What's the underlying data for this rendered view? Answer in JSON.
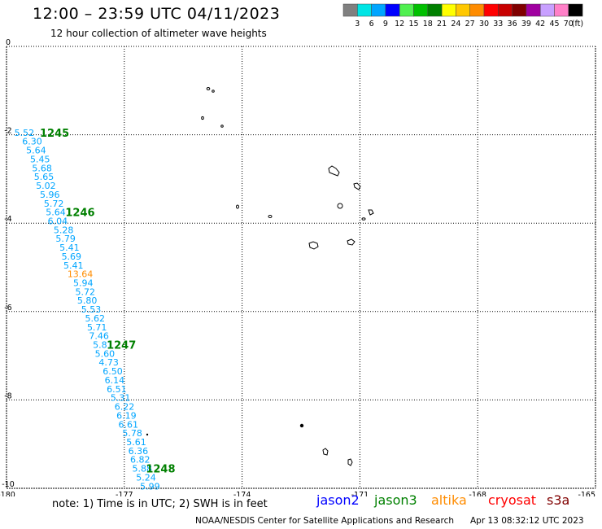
{
  "header": {
    "title": "12:00 – 23:59 UTC 04/11/2023",
    "subtitle": "12 hour collection of altimeter wave heights"
  },
  "colorbar": {
    "unit": "(ft)",
    "labels": [
      "3",
      "6",
      "9",
      "12",
      "15",
      "18",
      "21",
      "24",
      "27",
      "30",
      "33",
      "36",
      "39",
      "42",
      "45",
      "70"
    ],
    "colors": [
      "#808080",
      "#00e5e5",
      "#00a5ff",
      "#0000ff",
      "#50f050",
      "#00c000",
      "#008000",
      "#ffff00",
      "#ffc800",
      "#ff8c00",
      "#ff0000",
      "#c80000",
      "#800000",
      "#a000a0",
      "#c8a0ff",
      "#ff80c8",
      "#000000"
    ]
  },
  "footer": {
    "note": "note:  1) Time is in UTC;  2) SWH is in feet",
    "satellites": [
      {
        "name": "jason2",
        "color": "#0000ff"
      },
      {
        "name": "jason3",
        "color": "#008000"
      },
      {
        "name": "altika",
        "color": "#ff8c00"
      },
      {
        "name": "cryosat",
        "color": "#ff0000"
      },
      {
        "name": "s3a",
        "color": "#800000"
      }
    ],
    "credit": "NOAA/NESDIS Center for Satellite Applications and Research",
    "timestamp": "Apr 13 08:32:12 UTC 2023"
  },
  "chart_data": {
    "type": "scatter",
    "xlim": [
      -180,
      -165
    ],
    "ylim": [
      -10,
      0
    ],
    "x_ticks": [
      "-180",
      "-177",
      "-174",
      "-171",
      "-168",
      "-165"
    ],
    "y_ticks": [
      "0",
      "-2",
      "-4",
      "-6",
      "-8",
      "-10"
    ],
    "grid": true,
    "series": [
      {
        "name": "jason3",
        "label_color": "#008000",
        "text_color": "#00a5ff",
        "points": [
          {
            "x": -179.8,
            "y": -1.95,
            "v": "5.52"
          },
          {
            "x": -179.6,
            "y": -2.15,
            "v": "6.30"
          },
          {
            "x": -179.5,
            "y": -2.35,
            "v": "5.64"
          },
          {
            "x": -179.4,
            "y": -2.55,
            "v": "5.45"
          },
          {
            "x": -179.35,
            "y": -2.75,
            "v": "5.68"
          },
          {
            "x": -179.3,
            "y": -2.95,
            "v": "5.65"
          },
          {
            "x": -179.25,
            "y": -3.15,
            "v": "5.02"
          },
          {
            "x": -179.15,
            "y": -3.35,
            "v": "5.96"
          },
          {
            "x": -179.05,
            "y": -3.55,
            "v": "5.72"
          },
          {
            "x": -179.0,
            "y": -3.75,
            "v": "5.64"
          },
          {
            "x": -178.95,
            "y": -3.95,
            "v": "6.04"
          },
          {
            "x": -178.8,
            "y": -4.15,
            "v": "5.28"
          },
          {
            "x": -178.75,
            "y": -4.35,
            "v": "5.79"
          },
          {
            "x": -178.65,
            "y": -4.55,
            "v": "5.41"
          },
          {
            "x": -178.6,
            "y": -4.75,
            "v": "5.69"
          },
          {
            "x": -178.55,
            "y": -4.95,
            "v": "5.41"
          },
          {
            "x": -178.45,
            "y": -5.15,
            "v": "13.64",
            "color": "#ff8c00"
          },
          {
            "x": -178.3,
            "y": -5.35,
            "v": "5.94"
          },
          {
            "x": -178.25,
            "y": -5.55,
            "v": "5.72"
          },
          {
            "x": -178.2,
            "y": -5.75,
            "v": "5.80"
          },
          {
            "x": -178.1,
            "y": -5.95,
            "v": "5.53"
          },
          {
            "x": -178.0,
            "y": -6.15,
            "v": "5.62"
          },
          {
            "x": -177.95,
            "y": -6.35,
            "v": "5.71"
          },
          {
            "x": -177.9,
            "y": -6.55,
            "v": "7.46"
          },
          {
            "x": -177.8,
            "y": -6.75,
            "v": "5.81"
          },
          {
            "x": -177.75,
            "y": -6.95,
            "v": "5.60"
          },
          {
            "x": -177.65,
            "y": -7.15,
            "v": "4.73"
          },
          {
            "x": -177.55,
            "y": -7.35,
            "v": "6.50"
          },
          {
            "x": -177.5,
            "y": -7.55,
            "v": "6.14"
          },
          {
            "x": -177.45,
            "y": -7.75,
            "v": "6.51"
          },
          {
            "x": -177.35,
            "y": -7.95,
            "v": "5.31"
          },
          {
            "x": -177.25,
            "y": -8.15,
            "v": "6.22"
          },
          {
            "x": -177.2,
            "y": -8.35,
            "v": "6.19"
          },
          {
            "x": -177.15,
            "y": -8.55,
            "v": "6.61"
          },
          {
            "x": -177.05,
            "y": -8.75,
            "v": "5.78"
          },
          {
            "x": -176.95,
            "y": -8.95,
            "v": "5.61"
          },
          {
            "x": -176.9,
            "y": -9.15,
            "v": "6.36"
          },
          {
            "x": -176.85,
            "y": -9.35,
            "v": "6.82"
          },
          {
            "x": -176.8,
            "y": -9.55,
            "v": "5.88"
          },
          {
            "x": -176.7,
            "y": -9.75,
            "v": "5.24"
          },
          {
            "x": -176.6,
            "y": -9.95,
            "v": "5.99"
          }
        ],
        "time_labels": [
          {
            "x": -179.15,
            "y": -1.95,
            "text": "1245"
          },
          {
            "x": -178.5,
            "y": -3.75,
            "text": "1246"
          },
          {
            "x": -177.45,
            "y": -6.75,
            "text": "1247"
          },
          {
            "x": -176.45,
            "y": -9.55,
            "text": "1248"
          }
        ]
      }
    ]
  }
}
